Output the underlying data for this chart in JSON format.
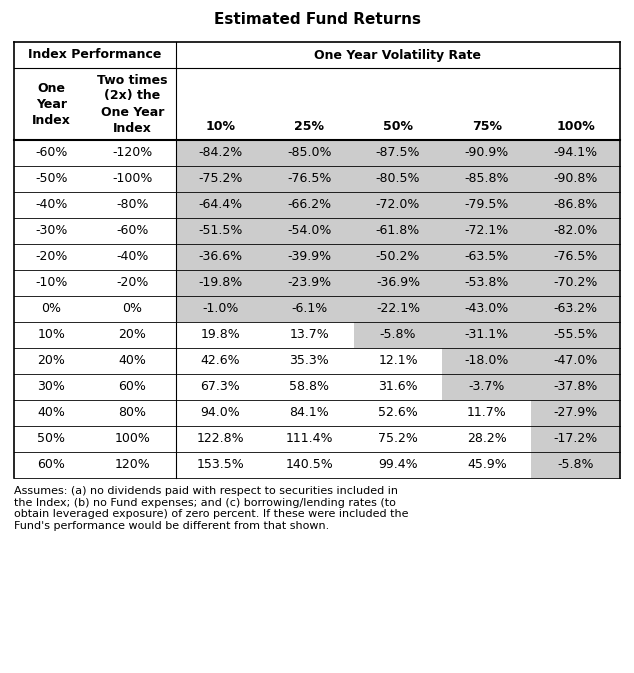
{
  "title": "Estimated Fund Returns",
  "row_labels": [
    "-60%",
    "-50%",
    "-40%",
    "-30%",
    "-20%",
    "-10%",
    "0%",
    "10%",
    "20%",
    "30%",
    "40%",
    "50%",
    "60%"
  ],
  "row_labels2": [
    "-120%",
    "-100%",
    "-80%",
    "-60%",
    "-40%",
    "-20%",
    "0%",
    "20%",
    "40%",
    "60%",
    "80%",
    "100%",
    "120%"
  ],
  "vol_headers": [
    "10%",
    "25%",
    "50%",
    "75%",
    "100%"
  ],
  "data": [
    [
      "-84.2%",
      "-85.0%",
      "-87.5%",
      "-90.9%",
      "-94.1%"
    ],
    [
      "-75.2%",
      "-76.5%",
      "-80.5%",
      "-85.8%",
      "-90.8%"
    ],
    [
      "-64.4%",
      "-66.2%",
      "-72.0%",
      "-79.5%",
      "-86.8%"
    ],
    [
      "-51.5%",
      "-54.0%",
      "-61.8%",
      "-72.1%",
      "-82.0%"
    ],
    [
      "-36.6%",
      "-39.9%",
      "-50.2%",
      "-63.5%",
      "-76.5%"
    ],
    [
      "-19.8%",
      "-23.9%",
      "-36.9%",
      "-53.8%",
      "-70.2%"
    ],
    [
      "-1.0%",
      "-6.1%",
      "-22.1%",
      "-43.0%",
      "-63.2%"
    ],
    [
      "19.8%",
      "13.7%",
      "-5.8%",
      "-31.1%",
      "-55.5%"
    ],
    [
      "42.6%",
      "35.3%",
      "12.1%",
      "-18.0%",
      "-47.0%"
    ],
    [
      "67.3%",
      "58.8%",
      "31.6%",
      "-3.7%",
      "-37.8%"
    ],
    [
      "94.0%",
      "84.1%",
      "52.6%",
      "11.7%",
      "-27.9%"
    ],
    [
      "122.8%",
      "111.4%",
      "75.2%",
      "28.2%",
      "-17.2%"
    ],
    [
      "153.5%",
      "140.5%",
      "99.4%",
      "45.9%",
      "-5.8%"
    ]
  ],
  "cell_shading": [
    [
      0,
      0,
      0,
      0,
      1
    ],
    [
      0,
      0,
      0,
      0,
      1
    ],
    [
      0,
      0,
      0,
      0,
      2
    ],
    [
      0,
      0,
      1,
      1,
      1
    ],
    [
      0,
      0,
      1,
      1,
      1
    ],
    [
      1,
      0,
      1,
      1,
      1
    ],
    [
      1,
      1,
      1,
      1,
      1
    ],
    [
      1,
      1,
      1,
      1,
      1
    ],
    [
      2,
      1,
      0,
      1,
      1
    ],
    [
      0,
      1,
      0,
      1,
      1
    ],
    [
      0,
      1,
      0,
      0,
      1
    ],
    [
      0,
      0,
      0,
      0,
      1
    ],
    [
      0,
      0,
      0,
      0,
      0
    ]
  ],
  "footnote": "Assumes: (a) no dividends paid with respect to securities included in\nthe Index; (b) no Fund expenses; and (c) borrowing/lending rates (to\nobtain leveraged exposure) of zero percent. If these were included the\nFund's performance would be different from that shown.",
  "bg_color": "#ffffff",
  "shade_light": "#d4d4d4",
  "shade_medium": "#b8b8b8",
  "shade_dark": "#9c9c9c"
}
